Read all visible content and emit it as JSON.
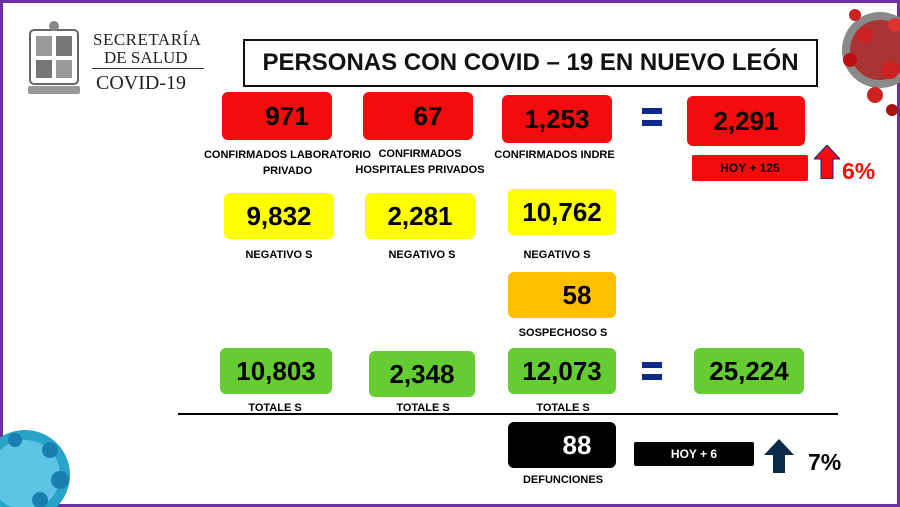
{
  "header": {
    "org_line1": "SECRETARÍA",
    "org_line2": "DE SALUD",
    "org_line3": "COVID-19",
    "title": "PERSONAS CON COVID – 19 EN NUEVO LEÓN"
  },
  "confirmed": {
    "lab_private": {
      "value": "971",
      "label": "CONFIRMADOS LABORATORIO PRIVADO"
    },
    "hosp_private": {
      "value": "67",
      "label": "CONFIRMADOS HOSPITALES PRIVADOS"
    },
    "indre": {
      "value": "1,253",
      "label": "CONFIRMADOS INDRE"
    },
    "total": "2,291",
    "today": "HOY + 125",
    "pct": "6%"
  },
  "negatives": {
    "a": {
      "value": "9,832",
      "label": "NEGATIVO S"
    },
    "b": {
      "value": "2,281",
      "label": "NEGATIVO S"
    },
    "c": {
      "value": "10,762",
      "label": "NEGATIVO S"
    }
  },
  "suspects": {
    "value": "58",
    "label": "SOSPECHOSO S"
  },
  "totals": {
    "a": {
      "value": "10,803",
      "label": "TOTALE S"
    },
    "b": {
      "value": "2,348",
      "label": "TOTALE S"
    },
    "c": {
      "value": "12,073",
      "label": "TOTALE S"
    },
    "grand": "25,224"
  },
  "deaths": {
    "value": "88",
    "label": "DEFUNCIONES",
    "today": "HOY + 6",
    "pct": "7%"
  },
  "colors": {
    "red": "#f40b0b",
    "yellow": "#ffff00",
    "orange": "#ffbf00",
    "green": "#66cc33",
    "equals": "#0b2a8a",
    "frame": "#6b2fa3"
  }
}
